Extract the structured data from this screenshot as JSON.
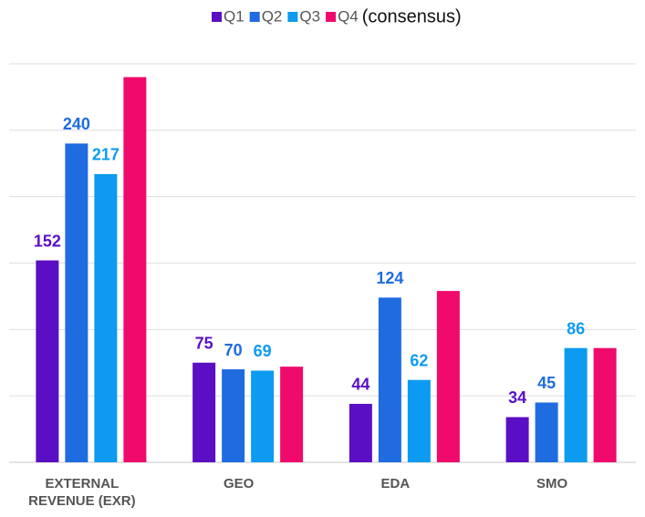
{
  "chart_data": {
    "type": "bar",
    "categories": [
      "EXTERNAL REVENUE (EXR)",
      "GEO",
      "EDA",
      "SMO"
    ],
    "series": [
      {
        "name": "Q1",
        "color": "#5a0fc4",
        "values": [
          152,
          75,
          44,
          34
        ],
        "show_labels": true
      },
      {
        "name": "Q2",
        "color": "#1f6ce0",
        "values": [
          240,
          70,
          124,
          45
        ],
        "show_labels": true
      },
      {
        "name": "Q3",
        "color": "#0c9bf0",
        "values": [
          217,
          69,
          62,
          86
        ],
        "show_labels": true
      },
      {
        "name": "Q4",
        "color": "#f00a6b",
        "values": [
          290,
          72,
          129,
          86
        ],
        "show_labels": false
      }
    ],
    "legend_note": "(consensus)",
    "legend_position": "top",
    "ylim": [
      0,
      300
    ],
    "yticks": [
      0,
      50,
      100,
      150,
      200,
      250,
      300
    ],
    "grid": true
  }
}
